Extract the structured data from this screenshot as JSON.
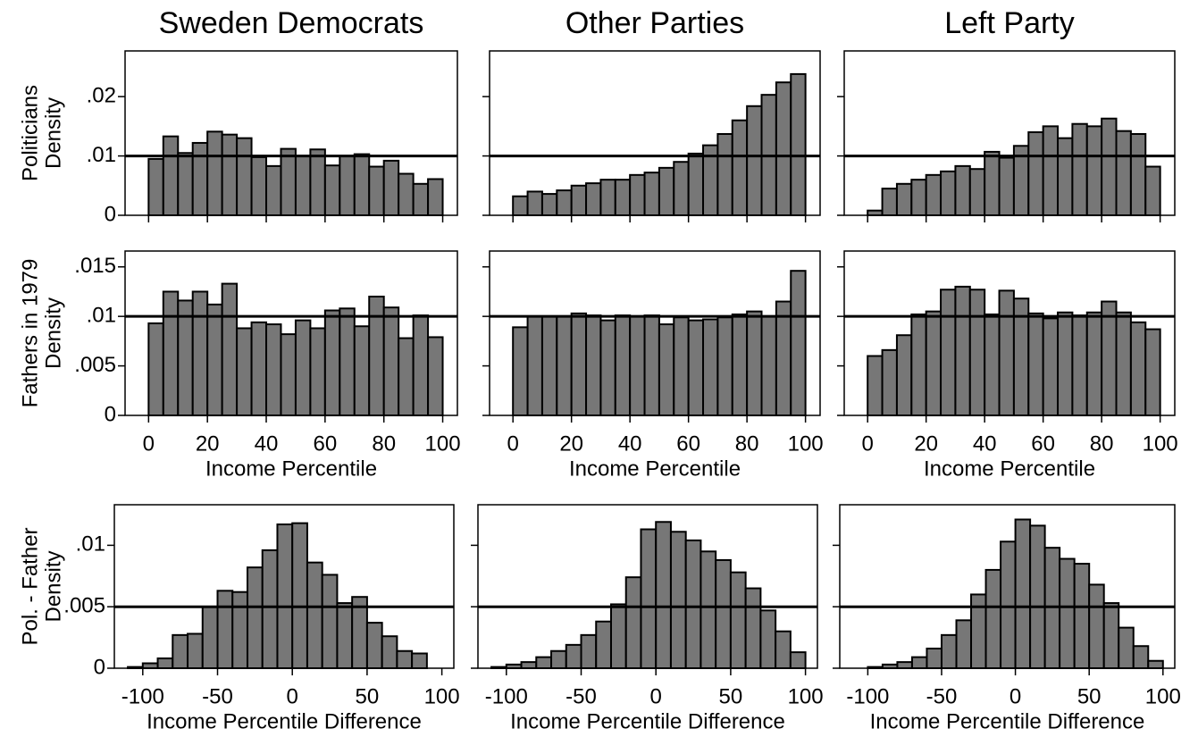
{
  "chart_data": [
    {
      "type": "histogram",
      "title": "Sweden Democrats",
      "ylabel": [
        "Politicians",
        "Density"
      ],
      "color": "#777777",
      "hline": 0.01,
      "bins": [
        0,
        5,
        10,
        15,
        20,
        25,
        30,
        35,
        40,
        45,
        50,
        55,
        60,
        65,
        70,
        75,
        80,
        85,
        90,
        95,
        100
      ],
      "values": [
        0.0095,
        0.0133,
        0.0105,
        0.0122,
        0.0141,
        0.0136,
        0.013,
        0.0098,
        0.0083,
        0.0112,
        0.01,
        0.0111,
        0.0084,
        0.01,
        0.0103,
        0.0082,
        0.0092,
        0.007,
        0.0053,
        0.0061
      ],
      "xlim": [
        -8,
        105
      ],
      "ylim": [
        0,
        0.0277
      ],
      "xticks": [
        0,
        20,
        40,
        60,
        80,
        100
      ],
      "xtick_labels": false,
      "yticks": [
        0,
        {
          "value": 0.01,
          "label": ".01"
        },
        {
          "value": 0.02,
          "label": ".02"
        }
      ]
    },
    {
      "type": "histogram",
      "title": "Other Parties",
      "color": "#777777",
      "hline": 0.01,
      "bins": [
        0,
        5,
        10,
        15,
        20,
        25,
        30,
        35,
        40,
        45,
        50,
        55,
        60,
        65,
        70,
        75,
        80,
        85,
        90,
        95,
        100
      ],
      "values": [
        0.0032,
        0.004,
        0.0036,
        0.0042,
        0.005,
        0.0054,
        0.006,
        0.006,
        0.0068,
        0.0072,
        0.008,
        0.009,
        0.0104,
        0.0118,
        0.0137,
        0.016,
        0.0184,
        0.0203,
        0.0224,
        0.0238
      ],
      "xlim": [
        -8,
        105
      ],
      "ylim": [
        0,
        0.0277
      ],
      "xticks": [
        0,
        20,
        40,
        60,
        80,
        100
      ],
      "xtick_labels": false,
      "yticks": [
        0,
        0.01,
        0.02
      ],
      "ytick_labels": false
    },
    {
      "type": "histogram",
      "title": "Left Party",
      "color": "#777777",
      "hline": 0.01,
      "bins": [
        0,
        5,
        10,
        15,
        20,
        25,
        30,
        35,
        40,
        45,
        50,
        55,
        60,
        65,
        70,
        75,
        80,
        85,
        90,
        95,
        100
      ],
      "values": [
        0.0008,
        0.0045,
        0.0053,
        0.006,
        0.0068,
        0.0074,
        0.0083,
        0.0078,
        0.0107,
        0.0097,
        0.0117,
        0.014,
        0.015,
        0.013,
        0.0154,
        0.015,
        0.0163,
        0.0142,
        0.0137,
        0.0082
      ],
      "xlim": [
        -8,
        105
      ],
      "ylim": [
        0,
        0.0277
      ],
      "xticks": [
        0,
        20,
        40,
        60,
        80,
        100
      ],
      "xtick_labels": false,
      "yticks": [
        0,
        0.01,
        0.02
      ],
      "ytick_labels": false
    },
    {
      "type": "histogram",
      "ylabel": [
        "Fathers in 1979",
        "Density"
      ],
      "xlabel": "Income Percentile",
      "color": "#777777",
      "hline": 0.01,
      "bins": [
        0,
        5,
        10,
        15,
        20,
        25,
        30,
        35,
        40,
        45,
        50,
        55,
        60,
        65,
        70,
        75,
        80,
        85,
        90,
        95,
        100
      ],
      "values": [
        0.0093,
        0.0125,
        0.0116,
        0.0125,
        0.0112,
        0.0133,
        0.0088,
        0.0094,
        0.0092,
        0.0082,
        0.0096,
        0.0088,
        0.0106,
        0.0108,
        0.009,
        0.012,
        0.0109,
        0.0078,
        0.0101,
        0.0079
      ],
      "xlim": [
        -8,
        105
      ],
      "ylim": [
        0,
        0.0166
      ],
      "xticks": [
        0,
        20,
        40,
        60,
        80,
        100
      ],
      "yticks": [
        0,
        {
          "value": 0.005,
          "label": ".005"
        },
        {
          "value": 0.01,
          "label": ".01"
        },
        {
          "value": 0.015,
          "label": ".015"
        }
      ]
    },
    {
      "type": "histogram",
      "xlabel": "Income Percentile",
      "color": "#777777",
      "hline": 0.01,
      "bins": [
        0,
        5,
        10,
        15,
        20,
        25,
        30,
        35,
        40,
        45,
        50,
        55,
        60,
        65,
        70,
        75,
        80,
        85,
        90,
        95,
        100
      ],
      "values": [
        0.0089,
        0.01,
        0.01,
        0.01,
        0.0103,
        0.0101,
        0.0096,
        0.0101,
        0.01,
        0.0101,
        0.0092,
        0.0099,
        0.0096,
        0.0097,
        0.0099,
        0.0102,
        0.0105,
        0.01,
        0.0115,
        0.0146
      ],
      "xlim": [
        -8,
        105
      ],
      "ylim": [
        0,
        0.0166
      ],
      "xticks": [
        0,
        20,
        40,
        60,
        80,
        100
      ],
      "yticks": [
        0,
        0.005,
        0.01,
        0.015
      ],
      "ytick_labels": false
    },
    {
      "type": "histogram",
      "xlabel": "Income Percentile",
      "color": "#777777",
      "hline": 0.01,
      "bins": [
        0,
        5,
        10,
        15,
        20,
        25,
        30,
        35,
        40,
        45,
        50,
        55,
        60,
        65,
        70,
        75,
        80,
        85,
        90,
        95,
        100
      ],
      "values": [
        0.006,
        0.0066,
        0.0081,
        0.0102,
        0.0105,
        0.0127,
        0.013,
        0.0127,
        0.0102,
        0.0126,
        0.0118,
        0.0103,
        0.0098,
        0.0104,
        0.0101,
        0.0104,
        0.0115,
        0.0104,
        0.0094,
        0.0087
      ],
      "xlim": [
        -8,
        105
      ],
      "ylim": [
        0,
        0.0166
      ],
      "xticks": [
        0,
        20,
        40,
        60,
        80,
        100
      ],
      "yticks": [
        0,
        0.005,
        0.01,
        0.015
      ],
      "ytick_labels": false
    },
    {
      "type": "histogram",
      "ylabel": [
        "Pol. - Father",
        "Density"
      ],
      "xlabel": "Income Percentile Difference",
      "color": "#777777",
      "hline": 0.005,
      "bins": [
        -110,
        -100,
        -90,
        -80,
        -70,
        -60,
        -50,
        -40,
        -30,
        -20,
        -10,
        0,
        10,
        20,
        30,
        40,
        50,
        60,
        70,
        80,
        90
      ],
      "values": [
        0.0001,
        0.0004,
        0.0008,
        0.0027,
        0.0028,
        0.005,
        0.0063,
        0.0062,
        0.0082,
        0.0096,
        0.0117,
        0.0118,
        0.0086,
        0.0076,
        0.0053,
        0.0058,
        0.0037,
        0.0026,
        0.0014,
        0.0012
      ],
      "xlim": [
        -119,
        108
      ],
      "ylim": [
        0,
        0.0133
      ],
      "xticks": [
        -100,
        -50,
        0,
        50,
        100
      ],
      "yticks": [
        0,
        {
          "value": 0.005,
          "label": ".005"
        },
        {
          "value": 0.01,
          "label": ".01"
        }
      ]
    },
    {
      "type": "histogram",
      "xlabel": "Income Percentile Difference",
      "color": "#777777",
      "hline": 0.005,
      "bins": [
        -110,
        -100,
        -90,
        -80,
        -70,
        -60,
        -50,
        -40,
        -30,
        -20,
        -10,
        0,
        10,
        20,
        30,
        40,
        50,
        60,
        70,
        80,
        90,
        100
      ],
      "values": [
        0.0001,
        0.0003,
        0.0005,
        0.0009,
        0.0014,
        0.0019,
        0.0027,
        0.0038,
        0.0052,
        0.0074,
        0.0113,
        0.0119,
        0.0111,
        0.0104,
        0.0095,
        0.0088,
        0.0078,
        0.0065,
        0.0047,
        0.003,
        0.0013
      ],
      "xlim": [
        -119,
        108
      ],
      "ylim": [
        0,
        0.0133
      ],
      "xticks": [
        -100,
        -50,
        0,
        50,
        100
      ],
      "yticks": [
        0,
        0.005,
        0.01
      ],
      "ytick_labels": false
    },
    {
      "type": "histogram",
      "xlabel": "Income Percentile Difference",
      "color": "#777777",
      "hline": 0.005,
      "bins": [
        -100,
        -90,
        -80,
        -70,
        -60,
        -50,
        -40,
        -30,
        -20,
        -10,
        0,
        10,
        20,
        30,
        40,
        50,
        60,
        70,
        80,
        90,
        100
      ],
      "values": [
        0.0001,
        0.0003,
        0.0005,
        0.0009,
        0.0016,
        0.0027,
        0.0039,
        0.006,
        0.008,
        0.0103,
        0.0121,
        0.0116,
        0.0098,
        0.0089,
        0.0085,
        0.0068,
        0.0053,
        0.0033,
        0.0018,
        0.0006
      ],
      "xlim": [
        -119,
        108
      ],
      "ylim": [
        0,
        0.0133
      ],
      "xticks": [
        -100,
        -50,
        0,
        50,
        100
      ],
      "yticks": [
        0,
        0.005,
        0.01
      ],
      "ytick_labels": false
    }
  ]
}
